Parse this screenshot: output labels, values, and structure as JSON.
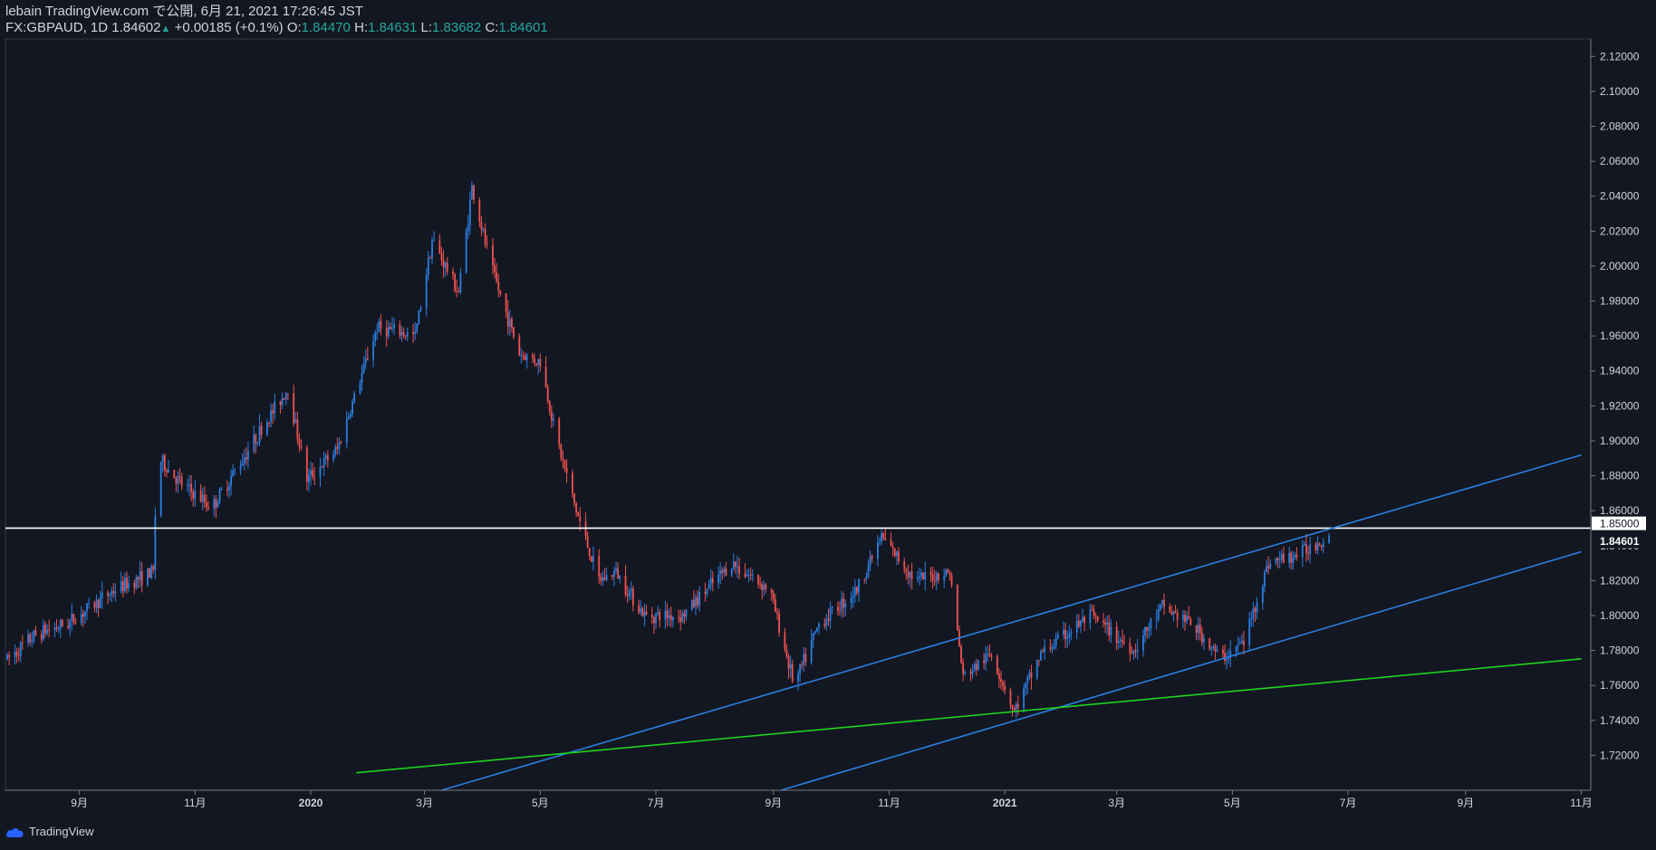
{
  "header": {
    "published": "lebain TradingView.com で公開, 6月 21, 2021 17:26:45 JST",
    "symbol": "FX:GBPAUD, 1D",
    "last": "1.84602",
    "change": "+0.00185 (+0.1%)",
    "o_label": "O:",
    "o_value": "1.84470",
    "h_label": "H:",
    "h_value": "1.84631",
    "l_label": "L:",
    "l_value": "1.83682",
    "c_label": "C:",
    "c_value": "1.84601"
  },
  "footer": {
    "brand": "TradingView"
  },
  "colors": {
    "background": "#131722",
    "up": "#2a7fe0",
    "down": "#ef5350",
    "channel": "#2a7fe0",
    "support": "#1ed41e",
    "horizontal": "#ffffff"
  },
  "chart_data": {
    "type": "line",
    "candles": "daily OHLC candlesticks (blue up / red down), path sampled at key points",
    "x": [
      "2019-07-25",
      "2019-08-10",
      "2019-08-25",
      "2019-09-20",
      "2019-10-10",
      "2019-10-12",
      "2019-10-25",
      "2019-11-10",
      "2019-12-05",
      "2019-12-20",
      "2019-12-30",
      "2020-01-15",
      "2020-02-05",
      "2020-02-25",
      "2020-03-05",
      "2020-03-19",
      "2020-03-26",
      "2020-04-05",
      "2020-04-20",
      "2020-05-01",
      "2020-05-10",
      "2020-05-20",
      "2020-06-01",
      "2020-06-10",
      "2020-06-25",
      "2020-07-15",
      "2020-08-10",
      "2020-08-30",
      "2020-09-12",
      "2020-09-25",
      "2020-10-15",
      "2020-10-28",
      "2020-11-15",
      "2020-12-03",
      "2020-12-10",
      "2020-12-25",
      "2021-01-06",
      "2021-01-20",
      "2021-02-15",
      "2021-03-10",
      "2021-03-25",
      "2021-04-10",
      "2021-04-25",
      "2021-05-07",
      "2021-05-20",
      "2021-06-05",
      "2021-06-21"
    ],
    "y": [
      1.775,
      1.79,
      1.795,
      1.815,
      1.825,
      1.891,
      1.875,
      1.862,
      1.905,
      1.93,
      1.878,
      1.895,
      1.965,
      1.96,
      2.015,
      1.985,
      2.045,
      2.0,
      1.95,
      1.945,
      1.9,
      1.86,
      1.82,
      1.825,
      1.8,
      1.8,
      1.83,
      1.815,
      1.76,
      1.795,
      1.815,
      1.845,
      1.82,
      1.825,
      1.765,
      1.778,
      1.745,
      1.778,
      1.8,
      1.78,
      1.805,
      1.795,
      1.775,
      1.785,
      1.83,
      1.835,
      1.846
    ],
    "lines": [
      {
        "kind": "horizontal",
        "y": 1.85
      },
      {
        "kind": "channel-upper",
        "points": [
          [
            "2020-03-10",
            1.7
          ],
          [
            "2021-11-01",
            1.8919
          ]
        ]
      },
      {
        "kind": "channel-lower",
        "points": [
          [
            "2020-09-05",
            1.7
          ],
          [
            "2021-11-01",
            1.8365
          ]
        ]
      },
      {
        "kind": "support",
        "points": [
          [
            "2020-01-25",
            1.71
          ],
          [
            "2021-11-01",
            1.7752
          ]
        ]
      }
    ],
    "price_labels": [
      "1.85000",
      "1.84601"
    ],
    "xlabel": "",
    "ylabel": "",
    "ylim": [
      1.7,
      2.13
    ],
    "xlim": [
      "2019-07-24",
      "2021-11-06"
    ],
    "y_ticks": [
      "2.12000",
      "2.10000",
      "2.08000",
      "2.06000",
      "2.04000",
      "2.02000",
      "2.00000",
      "1.98000",
      "1.96000",
      "1.94000",
      "1.92000",
      "1.90000",
      "1.88000",
      "1.86000",
      "1.84000",
      "1.82000",
      "1.80000",
      "1.78000",
      "1.76000",
      "1.74000",
      "1.72000"
    ],
    "x_ticks": [
      "9月",
      "11月",
      "2020",
      "3月",
      "5月",
      "7月",
      "9月",
      "11月",
      "2021",
      "3月",
      "5月",
      "7月",
      "9月",
      "11月"
    ],
    "x_tick_dates": [
      "2019-09-01",
      "2019-11-01",
      "2020-01-01",
      "2020-03-01",
      "2020-05-01",
      "2020-07-01",
      "2020-09-01",
      "2020-11-01",
      "2021-01-01",
      "2021-03-01",
      "2021-05-01",
      "2021-07-01",
      "2021-09-01",
      "2021-11-01"
    ],
    "grid": false
  }
}
